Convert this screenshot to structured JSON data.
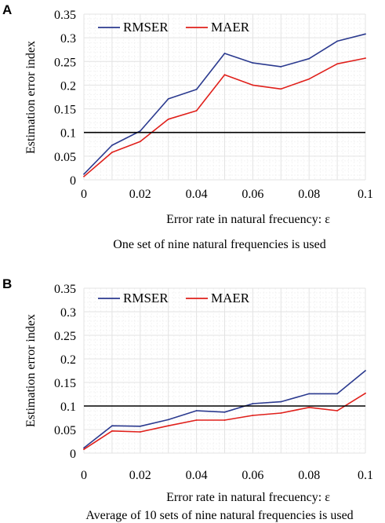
{
  "chart_data": [
    {
      "panel": "A",
      "type": "line",
      "caption": "One set of nine natural frequencies is used",
      "xlabel": "Error rate in natural frecuency: ε",
      "ylabel": "Estimation error index",
      "xlim": [
        0,
        0.1
      ],
      "ylim": [
        0,
        0.35
      ],
      "x_ticks": [
        "0",
        "0.02",
        "0.04",
        "0.06",
        "0.08",
        "0.1"
      ],
      "y_ticks": [
        "0",
        "0.05",
        "0.1",
        "0.15",
        "0.2",
        "0.25",
        "0.3",
        "0.35"
      ],
      "x": [
        0,
        0.01,
        0.02,
        0.03,
        0.04,
        0.05,
        0.06,
        0.07,
        0.08,
        0.09,
        0.1
      ],
      "reference_line": 0.1,
      "grid": true,
      "legend_position": "top-left",
      "series": [
        {
          "name": "RMSER",
          "color": "#2b3a8f",
          "values": [
            0.012,
            0.073,
            0.103,
            0.171,
            0.191,
            0.267,
            0.247,
            0.239,
            0.256,
            0.293,
            0.308
          ]
        },
        {
          "name": "MAER",
          "color": "#e0201b",
          "values": [
            0.007,
            0.058,
            0.081,
            0.128,
            0.146,
            0.222,
            0.2,
            0.192,
            0.213,
            0.245,
            0.257
          ]
        }
      ]
    },
    {
      "panel": "B",
      "type": "line",
      "caption": "Average of 10 sets of nine natural frequencies is used",
      "xlabel": "Error rate in natural frecuency: ε",
      "ylabel": "Estimation error index",
      "xlim": [
        0,
        0.1
      ],
      "ylim": [
        0,
        0.35
      ],
      "x_ticks": [
        "0",
        "0.02",
        "0.04",
        "0.06",
        "0.08",
        "0.1"
      ],
      "y_ticks": [
        "0",
        "0.05",
        "0.1",
        "0.15",
        "0.2",
        "0.25",
        "0.3",
        "0.35"
      ],
      "x": [
        0,
        0.01,
        0.02,
        0.03,
        0.04,
        0.05,
        0.06,
        0.07,
        0.08,
        0.09,
        0.1
      ],
      "reference_line": 0.1,
      "grid": true,
      "legend_position": "top-left",
      "series": [
        {
          "name": "RMSER",
          "color": "#2b3a8f",
          "values": [
            0.011,
            0.058,
            0.057,
            0.071,
            0.09,
            0.087,
            0.105,
            0.109,
            0.126,
            0.126,
            0.175
          ]
        },
        {
          "name": "MAER",
          "color": "#e0201b",
          "values": [
            0.008,
            0.047,
            0.045,
            0.058,
            0.07,
            0.07,
            0.08,
            0.085,
            0.097,
            0.09,
            0.127
          ]
        }
      ]
    }
  ]
}
